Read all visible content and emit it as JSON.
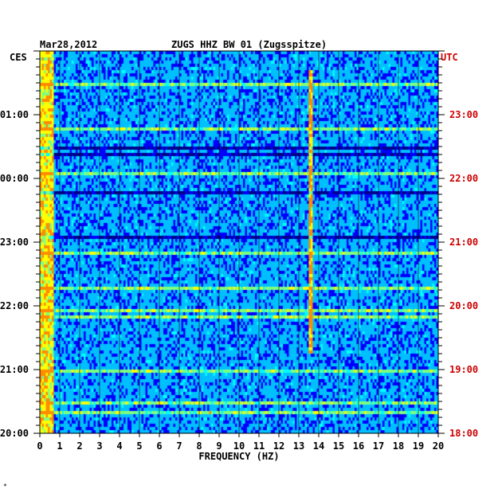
{
  "header": {
    "date": "Mar28,2012",
    "station": "ZUGS HHZ BW 01 (Zugsspitze)"
  },
  "left_axis_label": "CES",
  "right_axis_label": "UTC",
  "corner_mark": "*",
  "colors": {
    "background": "#ffffff",
    "left_labels": "#000000",
    "right_labels": "#cc0000",
    "gridlines": "#000000",
    "colormap": [
      "#00008b",
      "#0000ff",
      "#00bfff",
      "#00ffff",
      "#7fff7f",
      "#ffff00",
      "#ff8c00"
    ]
  },
  "chart_data": {
    "type": "heatmap",
    "title": "ZUGS HHZ BW 01 (Zugsspitze)",
    "xlabel": "FREQUENCY (HZ)",
    "ylabel_left": "CES",
    "ylabel_right": "UTC",
    "xlim": [
      0,
      20
    ],
    "x_ticks": [
      "0",
      "1",
      "2",
      "3",
      "4",
      "5",
      "6",
      "7",
      "8",
      "9",
      "10",
      "11",
      "12",
      "13",
      "14",
      "15",
      "16",
      "17",
      "18",
      "19",
      "20"
    ],
    "time_ticks_left": [
      "01:00",
      "00:00",
      "23:00",
      "22:00",
      "21:00",
      "20:00"
    ],
    "time_ticks_right": [
      "23:00",
      "22:00",
      "21:00",
      "20:00",
      "19:00",
      "18:00"
    ],
    "grid": true,
    "notable_features": [
      {
        "name": "persistent line",
        "frequency_hz": 13.6
      },
      {
        "name": "low-frequency energy",
        "frequency_hz": 0.3
      }
    ]
  }
}
